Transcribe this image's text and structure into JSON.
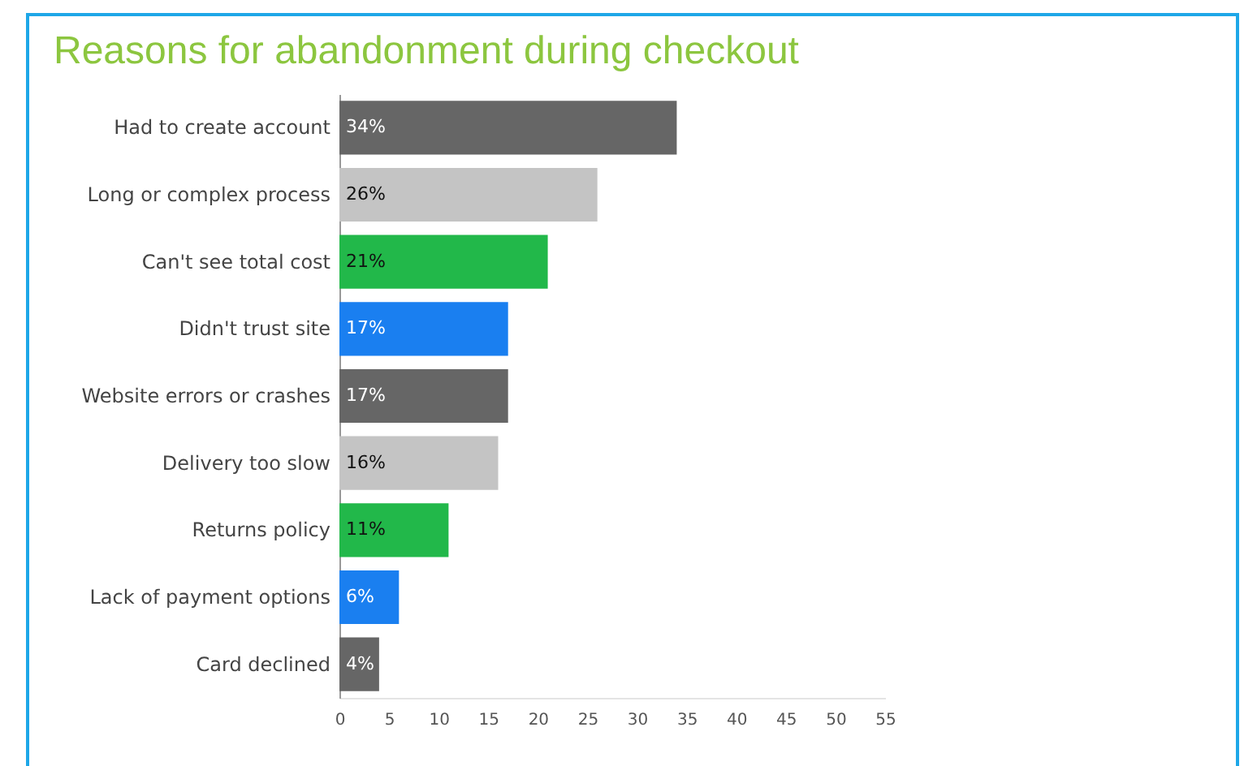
{
  "chart_data": {
    "type": "bar",
    "orientation": "horizontal",
    "title": "Reasons for abandonment during checkout",
    "categories": [
      "Had to create account",
      "Long or complex process",
      "Can't see total cost",
      "Didn't trust site",
      "Website errors or crashes",
      "Delivery too slow",
      "Returns policy",
      "Lack of payment options",
      "Card declined"
    ],
    "values": [
      34,
      26,
      21,
      17,
      17,
      16,
      11,
      6,
      4
    ],
    "value_labels": [
      "34%",
      "26%",
      "21%",
      "17%",
      "17%",
      "16%",
      "11%",
      "6%",
      "4%"
    ],
    "colors": [
      "#666666",
      "#c4c4c4",
      "#22b84a",
      "#1a7ff0",
      "#666666",
      "#c4c4c4",
      "#22b84a",
      "#1a7ff0",
      "#666666"
    ],
    "xlim": [
      0,
      55
    ],
    "xticks": [
      0,
      5,
      10,
      15,
      20,
      25,
      30,
      35,
      40,
      45,
      50,
      55
    ],
    "grid": false
  }
}
